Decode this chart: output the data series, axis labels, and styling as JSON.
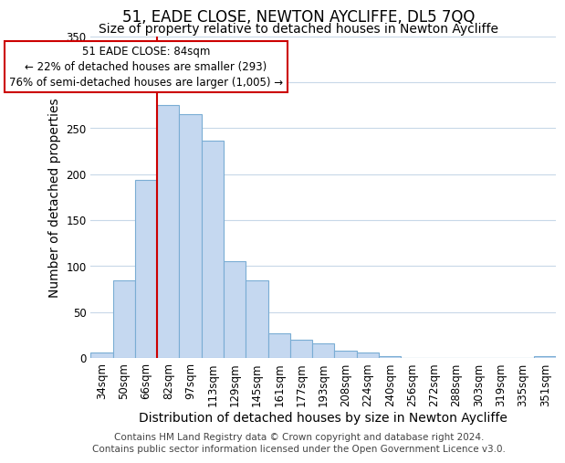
{
  "title": "51, EADE CLOSE, NEWTON AYCLIFFE, DL5 7QQ",
  "subtitle": "Size of property relative to detached houses in Newton Aycliffe",
  "xlabel": "Distribution of detached houses by size in Newton Aycliffe",
  "ylabel": "Number of detached properties",
  "footer_lines": [
    "Contains HM Land Registry data © Crown copyright and database right 2024.",
    "Contains public sector information licensed under the Open Government Licence v3.0."
  ],
  "bar_labels": [
    "34sqm",
    "50sqm",
    "66sqm",
    "82sqm",
    "97sqm",
    "113sqm",
    "129sqm",
    "145sqm",
    "161sqm",
    "177sqm",
    "193sqm",
    "208sqm",
    "224sqm",
    "240sqm",
    "256sqm",
    "272sqm",
    "288sqm",
    "303sqm",
    "319sqm",
    "335sqm",
    "351sqm"
  ],
  "bar_values": [
    6,
    84,
    194,
    275,
    265,
    236,
    105,
    84,
    27,
    20,
    16,
    8,
    6,
    2,
    0,
    0,
    0,
    0,
    0,
    0,
    2
  ],
  "bar_color": "#c5d8f0",
  "bar_edge_color": "#7aadd4",
  "vline_color": "#cc0000",
  "annotation_box_text": "51 EADE CLOSE: 84sqm\n← 22% of detached houses are smaller (293)\n76% of semi-detached houses are larger (1,005) →",
  "annotation_box_color": "#cc0000",
  "ylim": [
    0,
    350
  ],
  "background_color": "#ffffff",
  "grid_color": "#c8d8e8",
  "title_fontsize": 12,
  "subtitle_fontsize": 10,
  "axis_label_fontsize": 10,
  "tick_fontsize": 8.5,
  "footer_fontsize": 7.5
}
